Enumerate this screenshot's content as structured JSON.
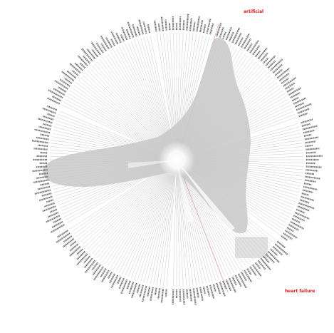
{
  "diagram": {
    "spoke_count": 240,
    "colors": {
      "spoke": "#b9b9b9",
      "label": "#6f6f6f",
      "highlight": "#d81b1b",
      "fill": "#c8c8c8",
      "glow": "#ffffff"
    },
    "highlights": [
      {
        "label": "artificial"
      },
      {
        "label": "heart failure"
      }
    ]
  }
}
